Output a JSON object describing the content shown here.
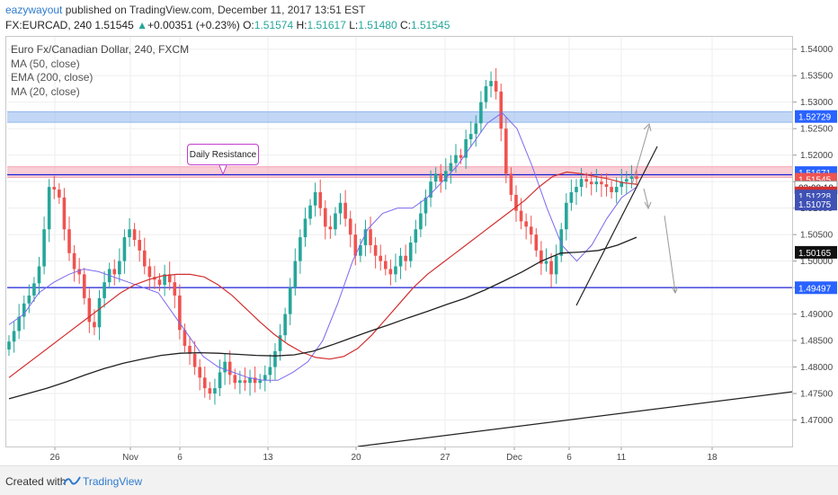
{
  "header": {
    "user": "eazywayout",
    "published_text": "published on TradingView.com, December 11, 2017 13:51 EST",
    "symbol": "FX:EURCAD, 240",
    "last": "1.51545",
    "change_arrow": "▲",
    "change": "+0.00351 (+0.23%)",
    "o_label": "O:",
    "o_value": "1.51574",
    "h_label": "H:",
    "h_value": "1.51617",
    "l_label": "L:",
    "l_value": "1.51480",
    "c_label": "C:",
    "c_value": "1.51545"
  },
  "legend": {
    "title": "Euro Fx/Canadian Dollar, 240, FXCM",
    "items": [
      "MA (50, close)",
      "EMA (200, close)",
      "MA (20, close)"
    ]
  },
  "annotation": {
    "text": "Daily Resistance"
  },
  "footer": {
    "created": "Created with",
    "brand": "TradingView"
  },
  "colors": {
    "up": "#26a69a",
    "down": "#ef5350",
    "ma50": "#d32f2f",
    "ema200": "#212121",
    "ma20": "#7b68ee",
    "resistance": "#1e22d6",
    "pink_zone": "#f4a6b5",
    "blue_zone": "#8fb6ec"
  },
  "chart_data": {
    "type": "candlestick",
    "y_axis": {
      "range": [
        1.465,
        1.5425
      ],
      "ticks": [
        "1.54000",
        "1.53500",
        "1.53000",
        "1.52500",
        "1.52000",
        "1.51500",
        "1.51000",
        "1.50500",
        "1.50000",
        "1.49500",
        "1.49000",
        "1.48500",
        "1.48000",
        "1.47500",
        "1.47000"
      ]
    },
    "x_axis": {
      "ticks": [
        "26",
        "Nov",
        "6",
        "13",
        "20",
        "27",
        "Dec",
        "6",
        "11",
        "18"
      ]
    },
    "price_labels": [
      {
        "text": "1.52729",
        "value": 1.52729,
        "bg": "#2962ff",
        "fg": "#ffffff"
      },
      {
        "text": "1.51671",
        "value": 1.51671,
        "bg": "#2962ff",
        "fg": "#ffffff"
      },
      {
        "text": "1.51545",
        "value": 1.51545,
        "bg": "#ef5350",
        "fg": "#ffffff"
      },
      {
        "text": "03:08:18",
        "value": 1.5139,
        "bg": "#ffffff",
        "fg": "#222222"
      },
      {
        "text": "1.51287",
        "value": 1.51287,
        "bg": "#d32f2f",
        "fg": "#ffffff"
      },
      {
        "text": "1.51228",
        "value": 1.51228,
        "bg": "#3f51b5",
        "fg": "#ffffff"
      },
      {
        "text": "1.51075",
        "value": 1.51075,
        "bg": "#3f51b5",
        "fg": "#ffffff"
      },
      {
        "text": "1.50165",
        "value": 1.50165,
        "bg": "#111111",
        "fg": "#ffffff"
      },
      {
        "text": "1.49497",
        "value": 1.49497,
        "bg": "#2962ff",
        "fg": "#ffffff"
      }
    ],
    "horizontal_levels": [
      1.5163,
      1.495
    ],
    "zones": [
      {
        "from": 1.5262,
        "to": 1.5282,
        "color": "#8fb6ec"
      },
      {
        "from": 1.5158,
        "to": 1.5178,
        "color": "#f4a6b5"
      }
    ],
    "closes": [
      1.4848,
      1.4868,
      1.4895,
      1.492,
      1.4935,
      1.4958,
      1.499,
      1.506,
      1.514,
      1.5135,
      1.512,
      1.506,
      1.5015,
      1.4985,
      1.4975,
      1.493,
      1.4885,
      1.4875,
      1.493,
      1.496,
      1.4985,
      1.4975,
      1.5,
      1.5045,
      1.506,
      1.504,
      1.502,
      1.499,
      1.497,
      1.4965,
      1.4955,
      1.4975,
      1.496,
      1.4935,
      1.487,
      1.484,
      1.4825,
      1.48,
      1.478,
      1.476,
      1.475,
      1.476,
      1.479,
      1.481,
      1.4785,
      1.477,
      1.4775,
      1.477,
      1.478,
      1.477,
      1.4775,
      1.4785,
      1.48,
      1.483,
      1.486,
      1.49,
      1.495,
      1.5,
      1.5045,
      1.508,
      1.5105,
      1.513,
      1.51,
      1.5065,
      1.506,
      1.509,
      1.511,
      1.508,
      1.505,
      1.501,
      1.503,
      1.506,
      1.503,
      1.501,
      1.5,
      1.4985,
      1.4975,
      1.499,
      1.501,
      1.5,
      1.5035,
      1.506,
      1.509,
      1.512,
      1.515,
      1.5165,
      1.515,
      1.517,
      1.5185,
      1.52,
      1.5195,
      1.523,
      1.524,
      1.526,
      1.53,
      1.533,
      1.534,
      1.532,
      1.525,
      1.5165,
      1.5125,
      1.5095,
      1.5075,
      1.5065,
      1.505,
      1.502,
      1.4995,
      1.5,
      1.4975,
      1.501,
      1.506,
      1.511,
      1.513,
      1.514,
      1.5155,
      1.515,
      1.5145,
      1.515,
      1.5145,
      1.514,
      1.513,
      1.514,
      1.515,
      1.5155,
      1.516,
      1.5155
    ],
    "ma50": [
      1.478,
      1.48,
      1.482,
      1.484,
      1.486,
      1.488,
      1.49,
      1.492,
      1.494,
      1.4955,
      1.4965,
      1.4972,
      1.4975,
      1.4975,
      1.497,
      1.4955,
      1.4935,
      1.491,
      1.4885,
      1.4862,
      1.4843,
      1.4828,
      1.4818,
      1.4815,
      1.482,
      1.4835,
      1.486,
      1.489,
      1.492,
      1.495,
      1.4975,
      1.4995,
      1.5015,
      1.5035,
      1.5055,
      1.5075,
      1.5095,
      1.5115,
      1.514,
      1.516,
      1.5168,
      1.5165,
      1.516,
      1.5155,
      1.5148,
      1.5145
    ],
    "ema200": [
      1.474,
      1.475,
      1.476,
      1.4772,
      1.4785,
      1.4797,
      1.4807,
      1.4815,
      1.4822,
      1.4826,
      1.4827,
      1.4826,
      1.4824,
      1.4822,
      1.4821,
      1.4823,
      1.483,
      1.4842,
      1.4855,
      1.4868,
      1.488,
      1.4893,
      1.4905,
      1.4918,
      1.493,
      1.4945,
      1.4962,
      1.498,
      1.5,
      1.5015,
      1.5017,
      1.502,
      1.503,
      1.5045
    ],
    "ma20": [
      1.488,
      1.49,
      1.494,
      1.496,
      1.4975,
      1.4985,
      1.498,
      1.497,
      1.496,
      1.495,
      1.494,
      1.49,
      1.486,
      1.482,
      1.48,
      1.479,
      1.478,
      1.4775,
      1.4775,
      1.479,
      1.481,
      1.485,
      1.492,
      1.5,
      1.506,
      1.509,
      1.51,
      1.51,
      1.512,
      1.515,
      1.518,
      1.522,
      1.526,
      1.528,
      1.525,
      1.518,
      1.51,
      1.503,
      1.5,
      1.503,
      1.508,
      1.512,
      1.514
    ]
  }
}
